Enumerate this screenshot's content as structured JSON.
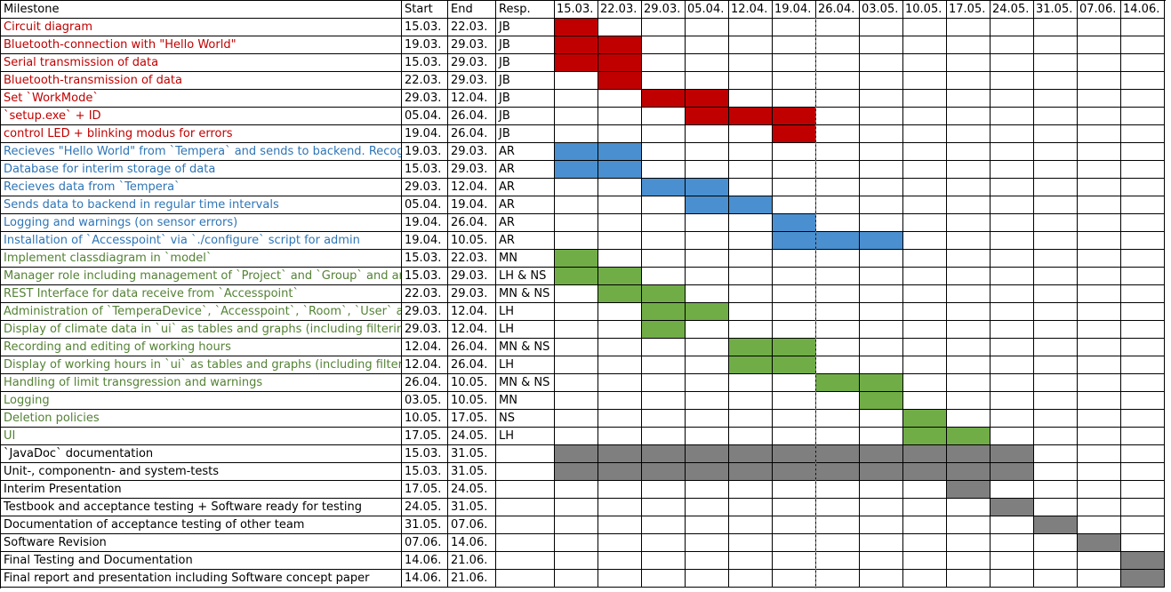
{
  "headers": {
    "milestone": "Milestone",
    "start": "Start",
    "end": "End",
    "resp": "Resp."
  },
  "dates": [
    "15.03.",
    "22.03.",
    "29.03.",
    "05.04.",
    "12.04.",
    "19.04.",
    "26.04.",
    "03.05.",
    "10.05.",
    "17.05.",
    "24.05.",
    "31.05.",
    "07.06.",
    "14.06."
  ],
  "colors": {
    "jb": "#c00000",
    "ar": "#4a8fcf",
    "mn": "#70ad47",
    "general": "#7f7f7f",
    "jb_text": "#c00000",
    "ar_text": "#2e75b6",
    "mn_text": "#548235",
    "general_text": "#000000"
  },
  "rows": [
    {
      "milestone": "Circuit diagram",
      "start": "15.03.",
      "end": "22.03.",
      "resp": "JB",
      "group": "jb",
      "bar": [
        0,
        0
      ]
    },
    {
      "milestone": "Bluetooth-connection with \"Hello World\"",
      "start": "19.03.",
      "end": "29.03.",
      "resp": "JB",
      "group": "jb",
      "bar": [
        0,
        1
      ]
    },
    {
      "milestone": "Serial transmission of data",
      "start": "15.03.",
      "end": "29.03.",
      "resp": "JB",
      "group": "jb",
      "bar": [
        0,
        1
      ]
    },
    {
      "milestone": "Bluetooth-transmission of data",
      "start": "22.03.",
      "end": "29.03.",
      "resp": "JB",
      "group": "jb",
      "bar": [
        1,
        1
      ]
    },
    {
      "milestone": "Set `WorkMode`",
      "start": "29.03.",
      "end": "12.04.",
      "resp": "JB",
      "group": "jb",
      "bar": [
        2,
        3
      ]
    },
    {
      "milestone": "`setup.exe` + ID",
      "start": "05.04.",
      "end": "26.04.",
      "resp": "JB",
      "group": "jb",
      "bar": [
        3,
        5
      ]
    },
    {
      "milestone": "control LED + blinking modus for errors",
      "start": "19.04.",
      "end": "26.04.",
      "resp": "JB",
      "group": "jb",
      "bar": [
        5,
        5
      ]
    },
    {
      "milestone": "Recieves \"Hello World\" from `Tempera` and sends to backend. Recog",
      "start": "19.03.",
      "end": "29.03.",
      "resp": "AR",
      "group": "ar",
      "bar": [
        0,
        1
      ]
    },
    {
      "milestone": "Database for interim storage of data",
      "start": "15.03.",
      "end": "29.03.",
      "resp": "AR",
      "group": "ar",
      "bar": [
        0,
        1
      ]
    },
    {
      "milestone": "Recieves data from `Tempera`",
      "start": "29.03.",
      "end": "12.04.",
      "resp": "AR",
      "group": "ar",
      "bar": [
        2,
        3
      ]
    },
    {
      "milestone": "Sends data to backend in regular time intervals",
      "start": "05.04.",
      "end": "19.04.",
      "resp": "AR",
      "group": "ar",
      "bar": [
        3,
        4
      ]
    },
    {
      "milestone": "Logging and warnings (on sensor errors)",
      "start": "19.04.",
      "end": "26.04.",
      "resp": "AR",
      "group": "ar",
      "bar": [
        5,
        5
      ]
    },
    {
      "milestone": "Installation of `Accesspoint` via `./configure` script for admin",
      "start": "19.04.",
      "end": "10.05.",
      "resp": "AR",
      "group": "ar",
      "bar": [
        5,
        7
      ]
    },
    {
      "milestone": "Implement classdiagram in `model`",
      "start": "15.03.",
      "end": "22.03.",
      "resp": "MN",
      "group": "mn",
      "bar": [
        0,
        0
      ]
    },
    {
      "milestone": "Manager role including management of `Project` and `Group` and an",
      "start": "15.03.",
      "end": "29.03.",
      "resp": "LH & NS",
      "group": "mn",
      "bar": [
        0,
        1
      ]
    },
    {
      "milestone": "REST Interface for data receive from `Accesspoint`",
      "start": "22.03.",
      "end": "29.03.",
      "resp": "MN & NS",
      "group": "mn",
      "bar": [
        1,
        2
      ]
    },
    {
      "milestone": "Administration of `TemperaDevice`, `Accesspoint`, `Room`, `User` an",
      "start": "29.03.",
      "end": "12.04.",
      "resp": "LH",
      "group": "mn",
      "bar": [
        2,
        3
      ]
    },
    {
      "milestone": "Display of climate data in `ui` as tables and graphs (including filterin",
      "start": "29.03.",
      "end": "12.04.",
      "resp": "LH",
      "group": "mn",
      "bar": [
        2,
        2
      ]
    },
    {
      "milestone": "Recording and editing of working hours",
      "start": "12.04.",
      "end": "26.04.",
      "resp": "MN & NS",
      "group": "mn",
      "bar": [
        4,
        5
      ]
    },
    {
      "milestone": "Display of working hours in `ui` as tables and graphs (including filter",
      "start": "12.04.",
      "end": "26.04.",
      "resp": "LH",
      "group": "mn",
      "bar": [
        4,
        5
      ]
    },
    {
      "milestone": "Handling of limit transgression and warnings",
      "start": "26.04.",
      "end": "10.05.",
      "resp": "MN & NS",
      "group": "mn",
      "bar": [
        6,
        7
      ]
    },
    {
      "milestone": "Logging",
      "start": "03.05.",
      "end": "10.05.",
      "resp": "MN",
      "group": "mn",
      "bar": [
        7,
        7
      ]
    },
    {
      "milestone": "Deletion policies",
      "start": "10.05.",
      "end": "17.05.",
      "resp": "NS",
      "group": "mn",
      "bar": [
        8,
        8
      ]
    },
    {
      "milestone": "UI",
      "start": "17.05.",
      "end": "24.05.",
      "resp": "LH",
      "group": "mn",
      "bar": [
        8,
        9
      ]
    },
    {
      "milestone": "`JavaDoc` documentation",
      "start": "15.03.",
      "end": "31.05.",
      "resp": "",
      "group": "general",
      "bar": [
        0,
        10
      ]
    },
    {
      "milestone": "Unit-, componentn- and system-tests",
      "start": "15.03.",
      "end": "31.05.",
      "resp": "",
      "group": "general",
      "bar": [
        0,
        10
      ]
    },
    {
      "milestone": "Interim Presentation",
      "start": "17.05.",
      "end": "24.05.",
      "resp": "",
      "group": "general",
      "bar": [
        9,
        9
      ]
    },
    {
      "milestone": "Testbook and acceptance testing + Software ready for testing",
      "start": "24.05.",
      "end": "31.05.",
      "resp": "",
      "group": "general",
      "bar": [
        10,
        10
      ]
    },
    {
      "milestone": "Documentation of acceptance testing of other team",
      "start": "31.05.",
      "end": "07.06.",
      "resp": "",
      "group": "general",
      "bar": [
        11,
        11
      ]
    },
    {
      "milestone": "Software Revision",
      "start": "07.06.",
      "end": "14.06.",
      "resp": "",
      "group": "general",
      "bar": [
        12,
        12
      ]
    },
    {
      "milestone": "Final Testing and Documentation",
      "start": "14.06.",
      "end": "21.06.",
      "resp": "",
      "group": "general",
      "bar": [
        13,
        13
      ]
    },
    {
      "milestone": "Final report and presentation including Software concept paper",
      "start": "14.06.",
      "end": "21.06.",
      "resp": "",
      "group": "general",
      "bar": [
        13,
        13
      ]
    }
  ]
}
